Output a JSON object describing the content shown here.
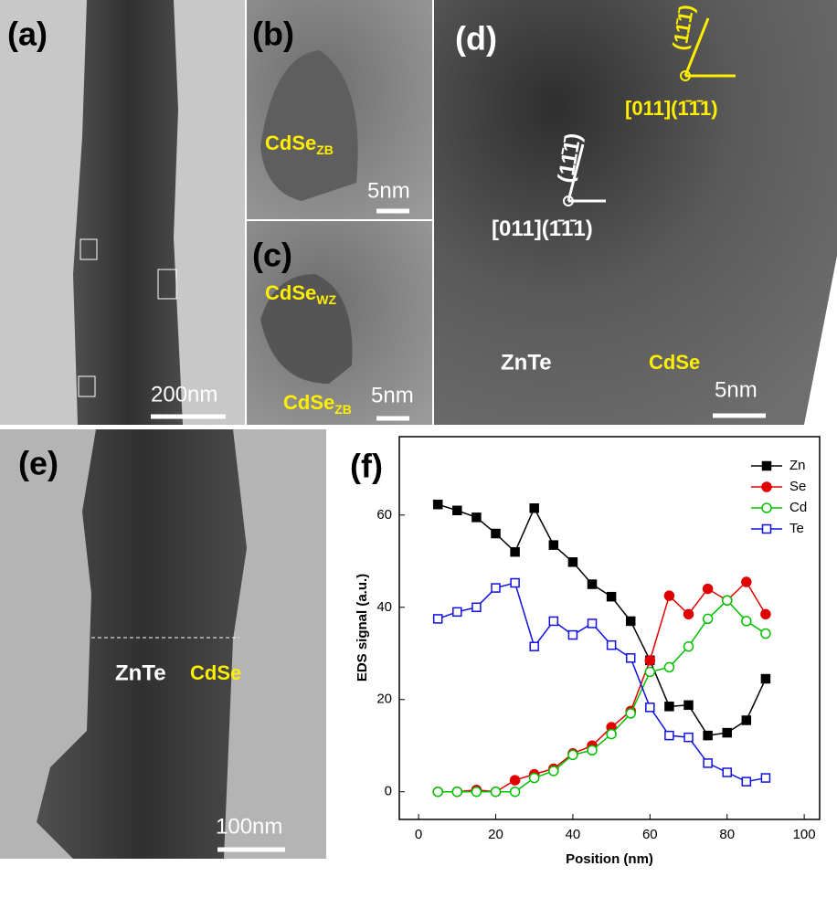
{
  "panels": {
    "a": {
      "label": "(a)",
      "scale": "200nm"
    },
    "b": {
      "label": "(b)",
      "material": "CdSe",
      "phase": "ZB",
      "scale": "5nm"
    },
    "c": {
      "label": "(c)",
      "material_1": "CdSe",
      "phase_1": "WZ",
      "material_2": "CdSe",
      "phase_2": "ZB",
      "scale": "5nm"
    },
    "d": {
      "label": "(d)",
      "plane_top": "(11̄1̄)",
      "zone_top": "[011]",
      "dir_top": "(1̄1̄1)",
      "plane_mid": "(11̄1̄)",
      "zone_mid": "[011]",
      "dir_mid": "(1̄1̄1)",
      "left": "ZnTe",
      "right": "CdSe",
      "scale": "5nm"
    },
    "e": {
      "label": "(e)",
      "left": "ZnTe",
      "right": "CdSe",
      "scale": "100nm"
    },
    "f": {
      "label": "(f)"
    }
  },
  "chart_data": {
    "type": "line",
    "x_label": "Position (nm)",
    "y_label": "EDS signal (a.u.)",
    "x": [
      5,
      10,
      15,
      20,
      25,
      30,
      35,
      40,
      45,
      50,
      55,
      60,
      65,
      70,
      75,
      80,
      85,
      90
    ],
    "series": [
      {
        "name": "Zn",
        "color": "#000000",
        "marker": "square",
        "filled": true,
        "values": [
          62.3,
          61,
          59.5,
          56,
          52,
          61.5,
          53.5,
          49.8,
          45,
          42.3,
          37,
          28.5,
          18.5,
          18.8,
          12.2,
          12.8,
          15.5,
          24.5
        ]
      },
      {
        "name": "Se",
        "color": "#e00000",
        "marker": "circle",
        "filled": true,
        "values": [
          0,
          0,
          0.4,
          0,
          2.5,
          3.8,
          5,
          8.3,
          10,
          14,
          17.5,
          28.5,
          42.5,
          38.5,
          44,
          41.5,
          45.5,
          38.5
        ]
      },
      {
        "name": "Cd",
        "color": "#00c000",
        "marker": "circle",
        "filled": false,
        "values": [
          0,
          0,
          0,
          0,
          0,
          3,
          4.5,
          8,
          9,
          12.5,
          17,
          26,
          27,
          31.5,
          37.5,
          41.5,
          37,
          34.3
        ]
      },
      {
        "name": "Te",
        "color": "#1010e0",
        "marker": "square",
        "filled": false,
        "values": [
          37.5,
          39,
          40,
          44.2,
          45.3,
          31.5,
          37,
          34,
          36.5,
          31.8,
          29,
          18.3,
          12.2,
          11.8,
          6.2,
          4.2,
          2.2,
          3
        ]
      }
    ],
    "xlim": [
      -5,
      104
    ],
    "xticks": [
      0,
      20,
      40,
      60,
      80,
      100
    ],
    "ylim": [
      -6,
      77
    ],
    "yticks": [
      0,
      20,
      40,
      60
    ],
    "legend": "upper right"
  }
}
